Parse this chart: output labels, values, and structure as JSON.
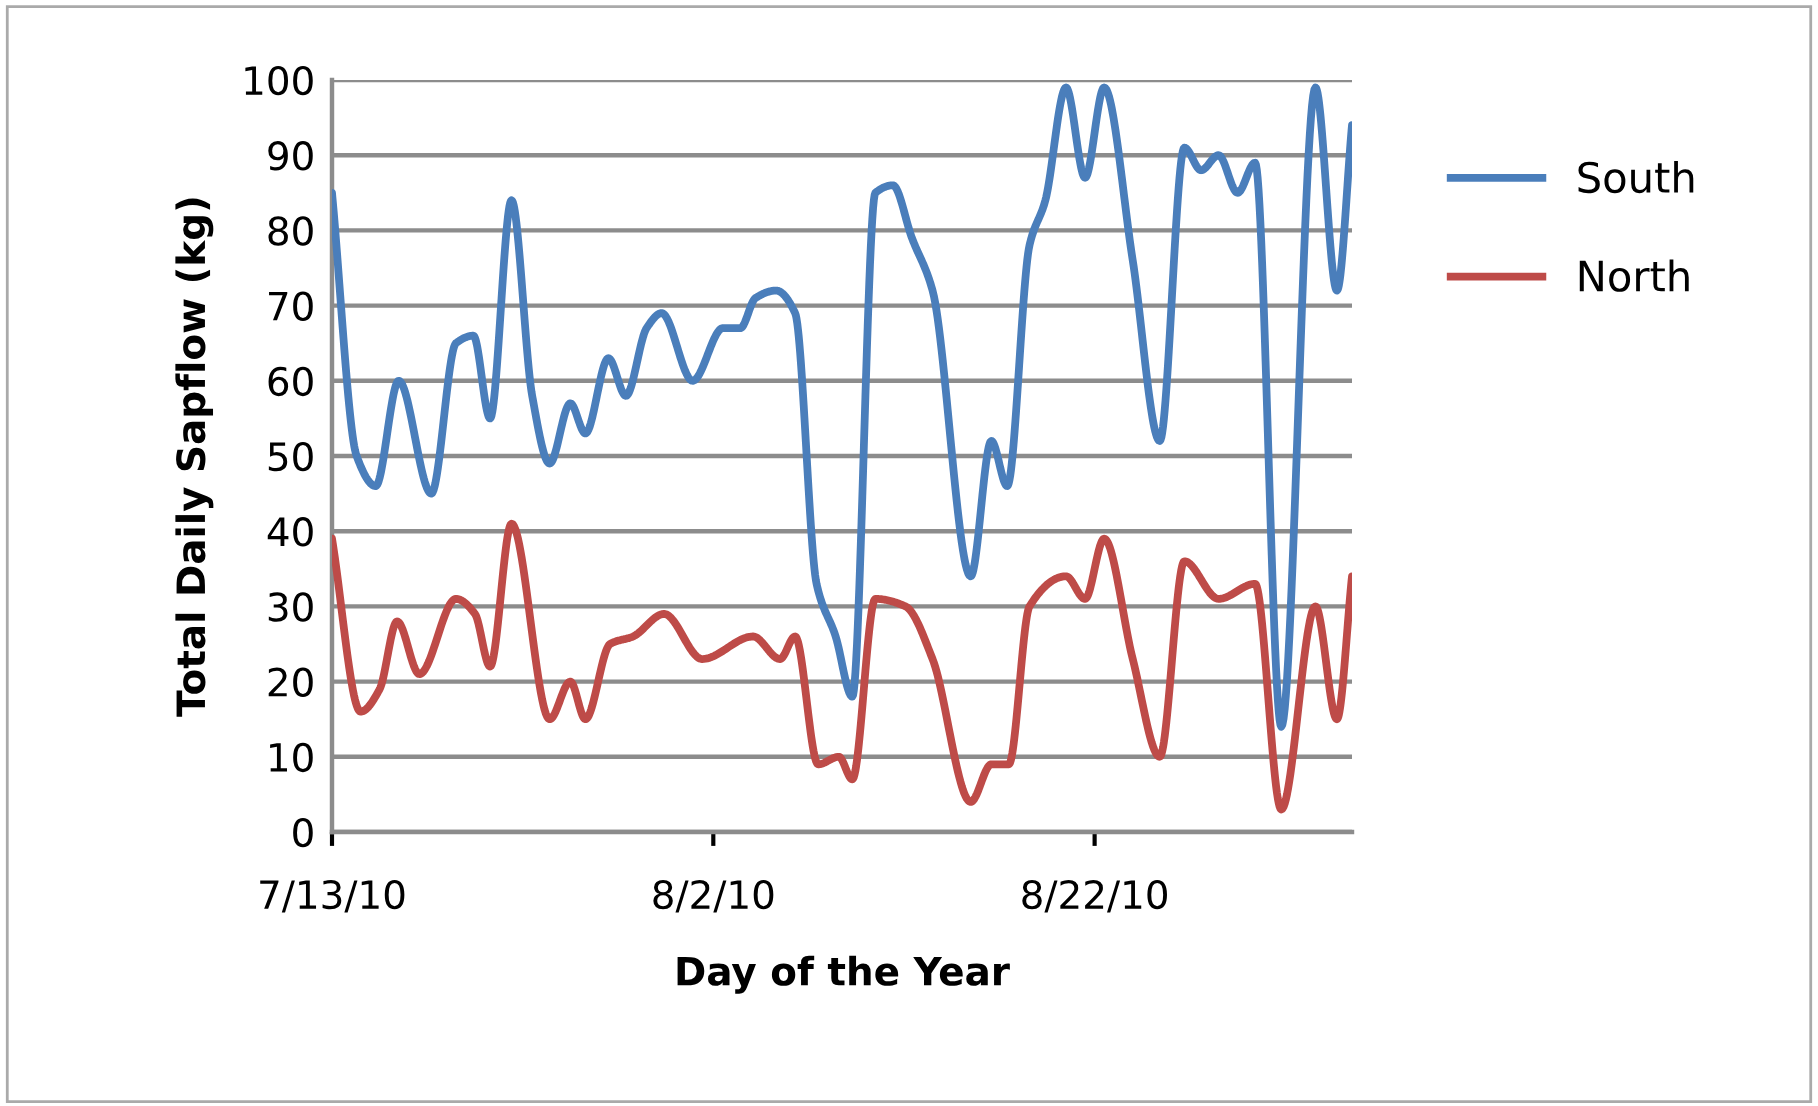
{
  "chart_data": {
    "type": "line",
    "xlabel": "Day of the Year",
    "ylabel": "Total Daily Sapflow (kg)",
    "xlim": [
      "2010-07-13",
      "2010-09-04T12:00"
    ],
    "xticks": [
      {
        "value": "2010-07-13",
        "label": "7/13/10"
      },
      {
        "value": "2010-08-02",
        "label": "8/2/10"
      },
      {
        "value": "2010-08-22",
        "label": "8/22/10"
      }
    ],
    "ylim": [
      0,
      100
    ],
    "yticks": [
      0,
      10,
      20,
      30,
      40,
      50,
      60,
      70,
      80,
      90,
      100
    ],
    "grid": "y",
    "legend": "right",
    "marker": "none",
    "line_style": "solid",
    "series": [
      {
        "name": "South",
        "color": "#4a7ebb",
        "x": [
          "2010-07-13T00:00",
          "2010-07-14T07:00",
          "2010-07-15T07:00",
          "2010-07-16T12:00",
          "2010-07-18T05:00",
          "2010-07-19T12:00",
          "2010-07-20T10:00",
          "2010-07-21T07:00",
          "2010-07-22T10:00",
          "2010-07-23T12:00",
          "2010-07-24T10:00",
          "2010-07-25T12:00",
          "2010-07-26T07:00",
          "2010-07-27T12:00",
          "2010-07-28T10:00",
          "2010-07-29T12:00",
          "2010-07-30T07:00",
          "2010-07-31T22:00",
          "2010-08-02T12:00",
          "2010-08-03T10:00",
          "2010-08-04T05:00",
          "2010-08-05T07:00",
          "2010-08-06T07:00",
          "2010-08-07T10:00",
          "2010-08-08T10:00",
          "2010-08-09T07:00",
          "2010-08-10T12:00",
          "2010-08-11T10:00",
          "2010-08-12T10:00",
          "2010-08-13T12:00",
          "2010-08-15T12:00",
          "2010-08-16T14:00",
          "2010-08-17T10:00",
          "2010-08-18T14:00",
          "2010-08-19T10:00",
          "2010-08-20T12:00",
          "2010-08-21T12:00",
          "2010-08-22T12:00",
          "2010-08-24T00:00",
          "2010-08-25T10:00",
          "2010-08-26T17:00",
          "2010-08-27T14:00",
          "2010-08-28T12:00",
          "2010-08-29T12:00",
          "2010-08-30T10:00",
          "2010-08-31T19:00",
          "2010-09-02T14:00",
          "2010-09-03T17:00",
          "2010-09-04T12:00"
        ],
        "values": [
          85,
          50,
          46,
          60,
          45,
          65,
          66,
          55,
          84,
          58,
          49,
          57,
          53,
          63,
          58,
          67,
          69,
          60,
          67,
          67,
          71,
          72,
          69,
          33,
          26,
          18,
          85,
          86,
          79,
          72,
          34,
          52,
          46,
          78,
          84,
          99,
          87,
          99,
          76,
          52,
          91,
          88,
          90,
          85,
          89,
          14,
          99,
          72,
          94
        ]
      },
      {
        "name": "North",
        "color": "#be4b48",
        "x": [
          "2010-07-13T00:00",
          "2010-07-14T12:00",
          "2010-07-15T12:00",
          "2010-07-16T10:00",
          "2010-07-17T14:00",
          "2010-07-19T12:00",
          "2010-07-20T12:00",
          "2010-07-21T07:00",
          "2010-07-22T10:00",
          "2010-07-24T10:00",
          "2010-07-25T12:00",
          "2010-07-26T07:00",
          "2010-07-27T14:00",
          "2010-07-28T19:00",
          "2010-07-30T10:00",
          "2010-08-01T10:00",
          "2010-08-04T02:00",
          "2010-08-05T12:00",
          "2010-08-06T07:00",
          "2010-08-07T12:00",
          "2010-08-08T14:00",
          "2010-08-09T07:00",
          "2010-08-10T12:00",
          "2010-08-12T02:00",
          "2010-08-13T12:00",
          "2010-08-15T12:00",
          "2010-08-16T14:00",
          "2010-08-17T12:00",
          "2010-08-18T14:00",
          "2010-08-20T12:00",
          "2010-08-21T12:00",
          "2010-08-22T12:00",
          "2010-08-24T00:00",
          "2010-08-25T10:00",
          "2010-08-26T17:00",
          "2010-08-28T12:00",
          "2010-08-30T10:00",
          "2010-08-31T19:00",
          "2010-09-02T14:00",
          "2010-09-03T17:00",
          "2010-09-04T12:00"
        ],
        "values": [
          39,
          16,
          19,
          28,
          21,
          31,
          29,
          22,
          41,
          15,
          20,
          15,
          25,
          26,
          29,
          23,
          26,
          23,
          26,
          9,
          10,
          7,
          31,
          30,
          23,
          4,
          9,
          9,
          30,
          34,
          31,
          39,
          23,
          10,
          36,
          31,
          33,
          3,
          30,
          15,
          34
        ]
      }
    ]
  }
}
